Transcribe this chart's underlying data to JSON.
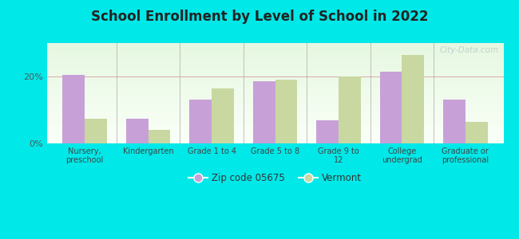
{
  "title": "School Enrollment by Level of School in 2022",
  "background_color": "#00e8e8",
  "categories": [
    "Nursery,\npreschool",
    "Kindergarten",
    "Grade 1 to 4",
    "Grade 5 to 8",
    "Grade 9 to\n12",
    "College\nundergrad",
    "Graduate or\nprofessional"
  ],
  "zip_values": [
    20.5,
    7.5,
    13.0,
    18.5,
    7.0,
    21.5,
    13.0
  ],
  "state_values": [
    7.5,
    4.0,
    16.5,
    19.0,
    20.0,
    26.5,
    6.5
  ],
  "zip_color": "#c8a0d8",
  "state_color": "#c8d8a0",
  "zip_label": "Zip code 05675",
  "state_label": "Vermont",
  "ylim": [
    0,
    30
  ],
  "yticks": [
    0,
    20
  ],
  "ytick_labels": [
    "0%",
    "20%"
  ],
  "bar_width": 0.35,
  "watermark": "City-Data.com"
}
